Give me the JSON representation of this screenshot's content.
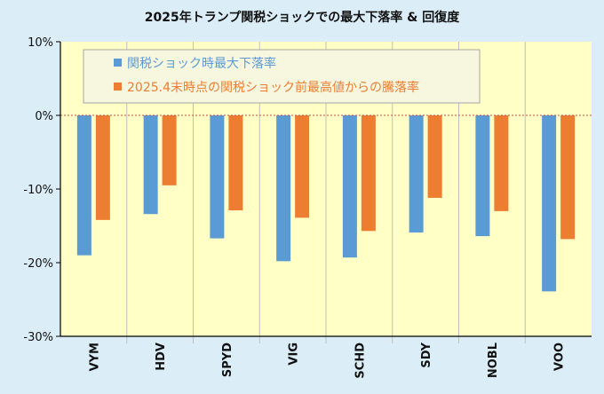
{
  "chart_data": {
    "type": "bar",
    "title": "2025年トランプ関税ショックでの最大下落率 & 回復度",
    "categories": [
      "VYM",
      "HDV",
      "SPYD",
      "VIG",
      "SCHD",
      "SDY",
      "NOBL",
      "VOO"
    ],
    "series": [
      {
        "name": "関税ショック時最大下落率",
        "color": "#5b9bd5",
        "values": [
          -19.0,
          -13.4,
          -16.7,
          -19.8,
          -19.3,
          -15.9,
          -16.4,
          -23.9
        ]
      },
      {
        "name": "2025.4末時点の関税ショック前最高値からの騰落率",
        "color": "#ed7d31",
        "values": [
          -14.2,
          -9.5,
          -12.9,
          -13.9,
          -15.7,
          -11.2,
          -13.0,
          -16.8
        ]
      }
    ],
    "y_ticks": [
      "10%",
      "0%",
      "-10%",
      "-20%",
      "-30%"
    ],
    "ylim": [
      -30,
      10
    ],
    "grid": false,
    "zero_line": "dotted",
    "legend_position": "top-left",
    "colors": {
      "plot_background": "#ffffc6",
      "figure_background": "#dbeef8",
      "zero_line": "#c0504d",
      "separator": "#bfbfbf"
    }
  }
}
